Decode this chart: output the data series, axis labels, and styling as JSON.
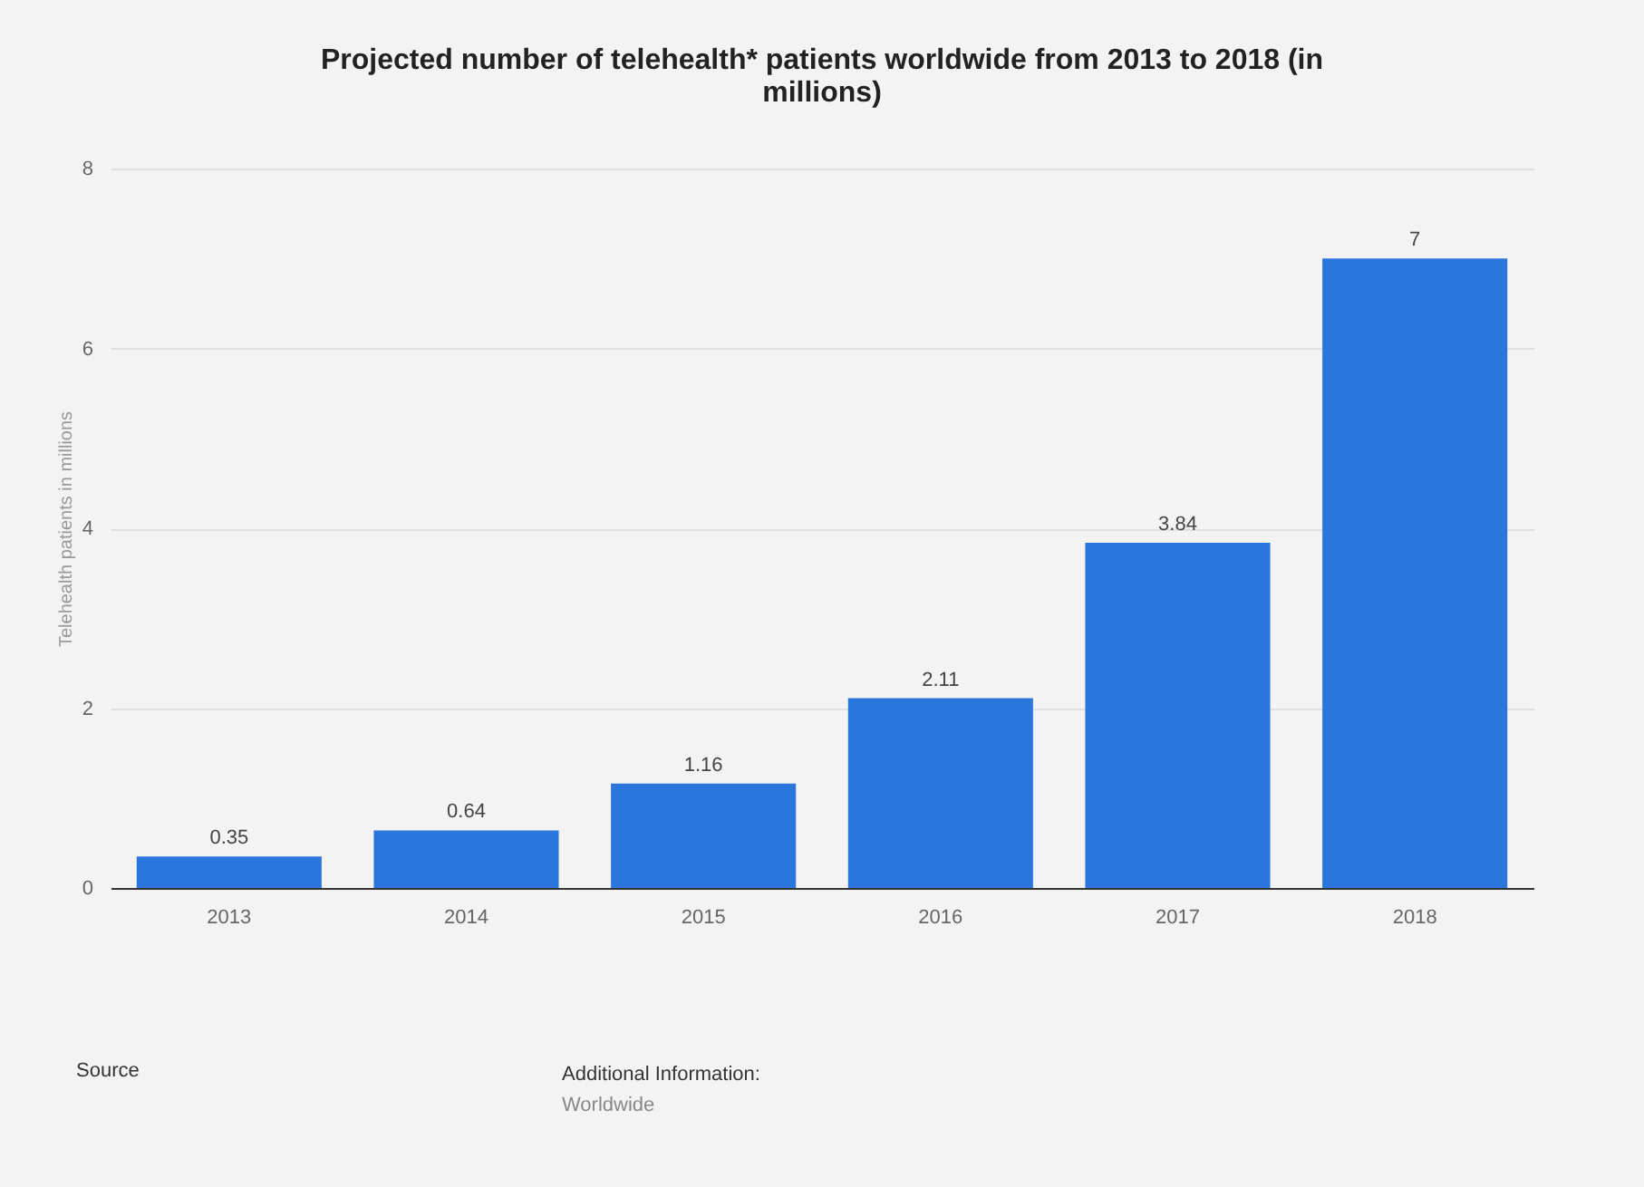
{
  "chart_data": {
    "type": "bar",
    "title": "Projected number of telehealth* patients worldwide from 2013 to 2018 (in millions)",
    "ylabel": "Telehealth patients in millions",
    "categories": [
      "2013",
      "2014",
      "2015",
      "2016",
      "2017",
      "2018"
    ],
    "values": [
      0.35,
      0.64,
      1.16,
      2.11,
      3.84,
      7
    ],
    "color": "#2a76dd",
    "ylim": [
      0,
      8
    ],
    "yticks": [
      0,
      2,
      4,
      6,
      8
    ],
    "grid": "y",
    "data_labels": true,
    "annotations": [
      "Source",
      "Additional Information:",
      "Worldwide"
    ]
  }
}
